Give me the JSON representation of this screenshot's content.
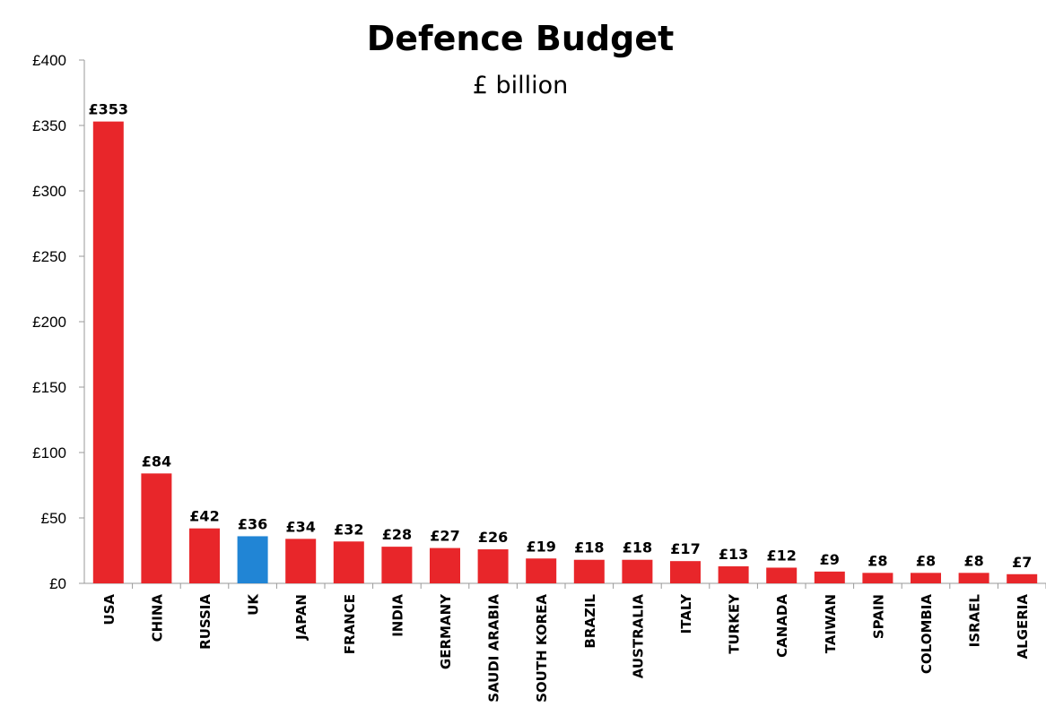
{
  "chart_data": {
    "type": "bar",
    "title": "Defence Budget",
    "subtitle": "£ billion",
    "xlabel": "",
    "ylabel": "",
    "ylim": [
      0,
      400
    ],
    "yticks": [
      0,
      50,
      100,
      150,
      200,
      250,
      300,
      350,
      400
    ],
    "ytick_labels": [
      "£0",
      "£50",
      "£100",
      "£150",
      "£200",
      "£250",
      "£300",
      "£350",
      "£400"
    ],
    "grid": false,
    "legend": "none",
    "categories": [
      "USA",
      "CHINA",
      "RUSSIA",
      "UK",
      "JAPAN",
      "FRANCE",
      "INDIA",
      "GERMANY",
      "SAUDI ARABIA",
      "SOUTH KOREA",
      "BRAZIL",
      "AUSTRALIA",
      "ITALY",
      "TURKEY",
      "CANADA",
      "TAIWAN",
      "SPAIN",
      "COLOMBIA",
      "ISRAEL",
      "ALGERIA"
    ],
    "values": [
      353,
      84,
      42,
      36,
      34,
      32,
      28,
      27,
      26,
      19,
      18,
      18,
      17,
      13,
      12,
      9,
      8,
      8,
      8,
      7
    ],
    "data_labels": [
      "£353",
      "£84",
      "£42",
      "£36",
      "£34",
      "£32",
      "£28",
      "£27",
      "£26",
      "£19",
      "£18",
      "£18",
      "£17",
      "£13",
      "£12",
      "£9",
      "£8",
      "£8",
      "£8",
      "£7"
    ],
    "colors": {
      "default": "#e8262a",
      "highlight": "#2185d5",
      "highlight_category": "UK"
    }
  }
}
